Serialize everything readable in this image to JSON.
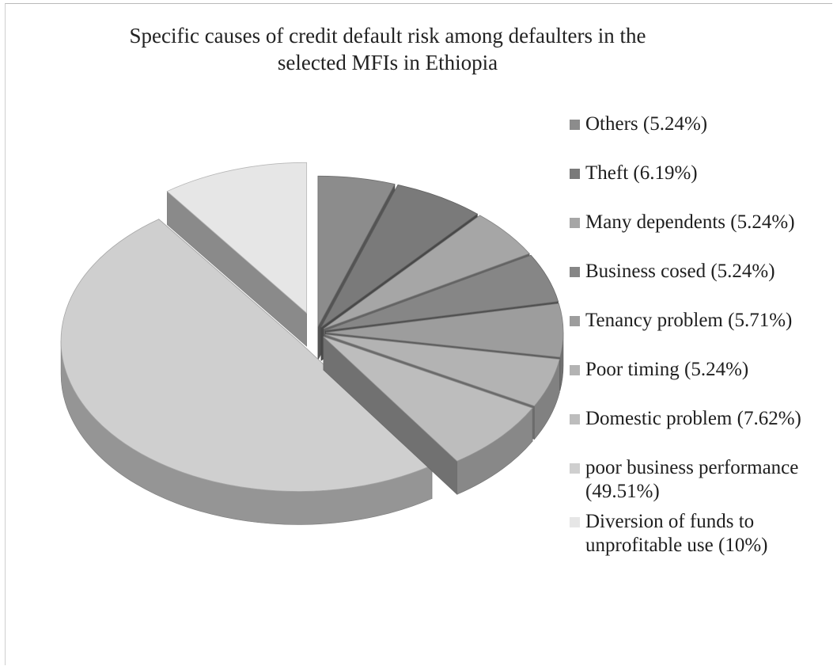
{
  "chart_data": {
    "type": "pie",
    "title": [
      "Specific causes of credit default risk among defaulters in the",
      "selected MFIs in Ethiopia"
    ],
    "legend_position": "right",
    "slices": [
      {
        "label": "Others (5.24%)",
        "value": 5.24,
        "color": "#8c8c8c"
      },
      {
        "label": "Theft (6.19%)",
        "value": 6.19,
        "color": "#7a7a7a"
      },
      {
        "label": "Many dependents (5.24%)",
        "value": 5.24,
        "color": "#a6a6a6"
      },
      {
        "label": "Business cosed (5.24%)",
        "value": 5.24,
        "color": "#868686"
      },
      {
        "label": "Tenancy problem (5.71%)",
        "value": 5.71,
        "color": "#9d9d9d"
      },
      {
        "label": "Poor timing (5.24%)",
        "value": 5.24,
        "color": "#b3b3b3"
      },
      {
        "label": "Domestic problem (7.62%)",
        "value": 7.62,
        "color": "#bdbdbd"
      },
      {
        "label": "poor business performance (49.51%)",
        "value": 49.51,
        "color": "#cfcfcf"
      },
      {
        "label": "Diversion of funds to unprofitable use (10%)",
        "value": 10,
        "color": "#e6e6e6"
      }
    ]
  }
}
